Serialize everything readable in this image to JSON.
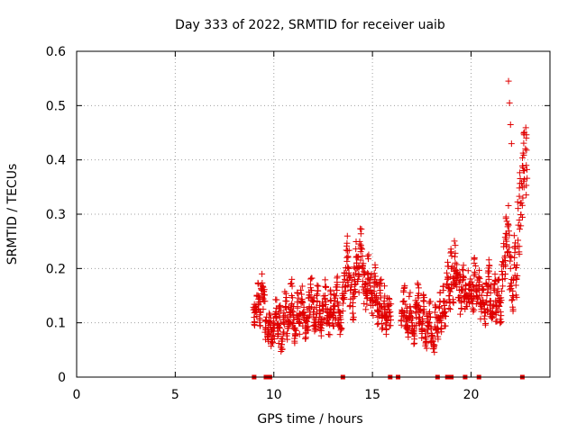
{
  "chart_data": {
    "type": "scatter",
    "title": "Day 333 of 2022, SRMTID for receiver uaib",
    "xlabel": "GPS time / hours",
    "ylabel": "SRMTID / TECUs",
    "xlim": [
      0,
      24
    ],
    "ylim": [
      0,
      0.6
    ],
    "x_ticks": [
      0,
      5,
      10,
      15,
      20
    ],
    "y_ticks": [
      0,
      0.1,
      0.2,
      0.3,
      0.4,
      0.5,
      0.6
    ],
    "x_tick_labels": [
      "0",
      "5",
      "10",
      "15",
      "20"
    ],
    "y_tick_labels": [
      "0",
      "0.1",
      "0.2",
      "0.3",
      "0.4",
      "0.5",
      "0.6"
    ],
    "grid": true,
    "marker": "plus",
    "color": "#e00000",
    "series": [
      {
        "name": "SRMTID",
        "x": [
          9.0,
          9.1,
          9.2,
          9.3,
          9.4,
          9.5,
          9.6,
          9.7,
          9.8,
          9.9,
          10.0,
          10.1,
          10.2,
          10.3,
          10.4,
          10.5,
          10.6,
          10.7,
          10.8,
          10.9,
          11.0,
          11.1,
          11.2,
          11.3,
          11.4,
          11.5,
          11.6,
          11.7,
          11.8,
          11.9,
          12.0,
          12.1,
          12.2,
          12.3,
          12.4,
          12.5,
          12.6,
          12.7,
          12.8,
          12.9,
          13.0,
          13.1,
          13.2,
          13.3,
          13.4,
          13.5,
          13.6,
          13.7,
          13.8,
          13.9,
          14.0,
          14.1,
          14.2,
          14.3,
          14.4,
          14.5,
          14.6,
          14.7,
          14.8,
          14.9,
          15.0,
          15.1,
          15.2,
          15.3,
          15.4,
          15.5,
          15.6,
          15.7,
          15.8,
          15.9,
          16.5,
          16.6,
          16.7,
          16.8,
          16.9,
          17.0,
          17.1,
          17.2,
          17.3,
          17.4,
          17.5,
          17.6,
          17.7,
          17.8,
          17.9,
          18.0,
          18.1,
          18.2,
          18.3,
          18.4,
          18.5,
          18.6,
          18.7,
          18.8,
          18.9,
          19.0,
          19.1,
          19.2,
          19.3,
          19.4,
          19.5,
          19.6,
          19.7,
          19.8,
          19.9,
          20.0,
          20.1,
          20.2,
          20.3,
          20.4,
          20.5,
          20.6,
          20.7,
          20.8,
          20.9,
          21.0,
          21.1,
          21.2,
          21.3,
          21.4,
          21.5,
          21.6,
          21.7,
          21.8,
          21.9,
          22.0,
          22.1,
          22.2,
          22.3,
          22.4,
          22.5,
          22.6,
          22.7,
          22.8
        ],
        "y": [
          0.11,
          0.13,
          0.15,
          0.12,
          0.16,
          0.14,
          0.09,
          0.08,
          0.1,
          0.07,
          0.09,
          0.12,
          0.08,
          0.11,
          0.06,
          0.1,
          0.13,
          0.09,
          0.12,
          0.15,
          0.11,
          0.08,
          0.13,
          0.1,
          0.14,
          0.12,
          0.09,
          0.11,
          0.13,
          0.16,
          0.12,
          0.1,
          0.14,
          0.11,
          0.09,
          0.13,
          0.15,
          0.12,
          0.1,
          0.14,
          0.11,
          0.13,
          0.16,
          0.12,
          0.1,
          0.15,
          0.18,
          0.22,
          0.2,
          0.16,
          0.13,
          0.17,
          0.21,
          0.19,
          0.24,
          0.2,
          0.17,
          0.15,
          0.19,
          0.16,
          0.14,
          0.18,
          0.15,
          0.12,
          0.16,
          0.11,
          0.14,
          0.1,
          0.13,
          0.12,
          0.12,
          0.14,
          0.11,
          0.09,
          0.13,
          0.1,
          0.08,
          0.12,
          0.15,
          0.11,
          0.09,
          0.13,
          0.07,
          0.1,
          0.12,
          0.08,
          0.06,
          0.11,
          0.09,
          0.13,
          0.1,
          0.14,
          0.12,
          0.18,
          0.15,
          0.2,
          0.17,
          0.21,
          0.19,
          0.16,
          0.14,
          0.18,
          0.15,
          0.13,
          0.17,
          0.16,
          0.14,
          0.19,
          0.15,
          0.17,
          0.13,
          0.16,
          0.12,
          0.15,
          0.18,
          0.14,
          0.11,
          0.16,
          0.13,
          0.15,
          0.12,
          0.18,
          0.22,
          0.25,
          0.28,
          0.2,
          0.15,
          0.22,
          0.18,
          0.28,
          0.32,
          0.35,
          0.38,
          0.39
        ],
        "outliers_x": [
          21.9,
          21.95,
          22.0,
          22.05
        ],
        "outliers_y": [
          0.545,
          0.505,
          0.465,
          0.43
        ]
      }
    ],
    "ground_marks_x": [
      9.0,
      9.6,
      9.7,
      9.8,
      13.5,
      15.9,
      16.3,
      18.3,
      18.8,
      19.0,
      19.7,
      20.4,
      22.6
    ]
  }
}
